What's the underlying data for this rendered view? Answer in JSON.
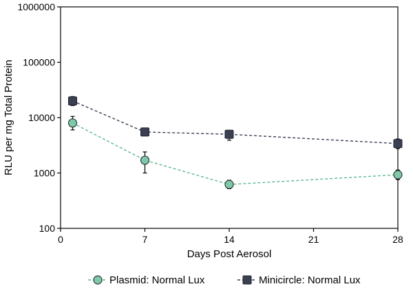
{
  "chart_data": {
    "type": "line",
    "x_scale": "linear",
    "y_scale": "log",
    "xlim": [
      0,
      28
    ],
    "ylim": [
      100,
      1000000
    ],
    "xticks": [
      0,
      7,
      14,
      21,
      28
    ],
    "xtick_labels": [
      "0",
      "7",
      "14",
      "21",
      "28"
    ],
    "yticks": [
      100,
      1000,
      10000,
      100000,
      1000000
    ],
    "ytick_labels": [
      "100",
      "1000",
      "10000",
      "100000",
      "1000000"
    ],
    "xlabel": "Days Post Aerosol",
    "ylabel": "RLU per mg Total Protein",
    "grid": false,
    "legend_position": "bottom",
    "series": [
      {
        "name": "Plasmid: Normal Lux",
        "marker": "circle",
        "line_style": "dashed",
        "color": "#7fc9a8",
        "line_color": "#5cb892",
        "x": [
          1,
          7,
          14,
          28
        ],
        "y": [
          8000,
          1700,
          620,
          930
        ],
        "err_low": [
          6000,
          1000,
          520,
          760
        ],
        "err_high": [
          10500,
          2400,
          740,
          1130
        ]
      },
      {
        "name": "Minicircle: Normal Lux",
        "marker": "square",
        "line_style": "dashed",
        "color": "#3a3f52",
        "line_color": "#3a3f52",
        "x": [
          1,
          7,
          14,
          28
        ],
        "y": [
          20000,
          5500,
          5000,
          3400
        ],
        "err_low": [
          16500,
          4900,
          3900,
          2750
        ],
        "err_high": [
          24000,
          6000,
          5900,
          4100
        ]
      }
    ]
  }
}
